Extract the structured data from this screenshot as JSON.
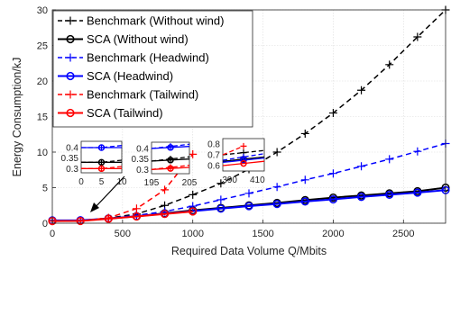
{
  "chart_data": {
    "type": "line",
    "xlabel": "Required Data Volume Q/Mbits",
    "ylabel": "Energy Consumption/kJ",
    "xlim": [
      0,
      2800
    ],
    "ylim": [
      0,
      30
    ],
    "xticks": [
      0,
      500,
      1000,
      1500,
      2000,
      2500
    ],
    "yticks": [
      0,
      5,
      10,
      15,
      20,
      25,
      30
    ],
    "grid": true,
    "legend_position": "top-left",
    "series": [
      {
        "name": "Benchmark (Without wind)",
        "color": "#000000",
        "dash": true,
        "marker": "plus",
        "x": [
          0,
          200,
          400,
          600,
          800,
          1000,
          1200,
          1400,
          1600,
          1800,
          2000,
          2200,
          2400,
          2600,
          2800
        ],
        "y": [
          0.33,
          0.35,
          0.72,
          1.3,
          2.5,
          4.0,
          5.6,
          7.6,
          10.0,
          12.6,
          15.5,
          18.7,
          22.3,
          26.2,
          30.0
        ]
      },
      {
        "name": "SCA (Without wind)",
        "color": "#000000",
        "dash": false,
        "marker": "circle",
        "x": [
          0,
          200,
          400,
          600,
          800,
          1000,
          1200,
          1400,
          1600,
          1800,
          2000,
          2200,
          2400,
          2600,
          2800
        ],
        "y": [
          0.33,
          0.35,
          0.66,
          0.97,
          1.4,
          1.8,
          2.15,
          2.5,
          2.85,
          3.25,
          3.6,
          3.9,
          4.2,
          4.5,
          5.0
        ]
      },
      {
        "name": "Benchmark (Headwind)",
        "color": "#0000ff",
        "dash": true,
        "marker": "plus",
        "x": [
          0,
          200,
          400,
          600,
          800,
          1000,
          1200,
          1400,
          1600,
          1800,
          2000,
          2200,
          2400,
          2600,
          2800
        ],
        "y": [
          0.4,
          0.4,
          0.68,
          1.1,
          1.65,
          2.4,
          3.3,
          4.2,
          5.1,
          6.1,
          7.0,
          8.0,
          9.0,
          10.1,
          11.2
        ]
      },
      {
        "name": "SCA (Headwind)",
        "color": "#0000ff",
        "dash": false,
        "marker": "circle",
        "x": [
          0,
          200,
          400,
          600,
          800,
          1000,
          1200,
          1400,
          1600,
          1800,
          2000,
          2200,
          2400,
          2600,
          2800
        ],
        "y": [
          0.4,
          0.41,
          0.65,
          0.98,
          1.35,
          1.7,
          2.05,
          2.4,
          2.7,
          3.05,
          3.35,
          3.7,
          4.0,
          4.3,
          4.65
        ]
      },
      {
        "name": "Benchmark (Tailwind)",
        "color": "#ff0000",
        "dash": true,
        "marker": "plus",
        "x": [
          0,
          200,
          400,
          600,
          800,
          1000
        ],
        "y": [
          0.3,
          0.32,
          0.75,
          2.05,
          4.7,
          9.7
        ]
      },
      {
        "name": "SCA (Tailwind)",
        "color": "#ff0000",
        "dash": false,
        "marker": "circle",
        "x": [
          0,
          200,
          400,
          600,
          800,
          1000
        ],
        "y": [
          0.3,
          0.31,
          0.62,
          0.95,
          1.3,
          1.65
        ]
      }
    ],
    "insets": [
      {
        "xlim": [
          0,
          10
        ],
        "ylim": [
          0.28,
          0.43
        ],
        "xticks": [
          0,
          5,
          10
        ],
        "yticks": [
          0.3,
          0.35,
          0.4
        ],
        "series_y": [
          [
            0.33,
            0.33,
            0.34
          ],
          [
            0.33,
            0.33,
            0.33
          ],
          [
            0.4,
            0.4,
            0.41
          ],
          [
            0.4,
            0.4,
            0.4
          ],
          [
            0.3,
            0.3,
            0.31
          ],
          [
            0.3,
            0.3,
            0.3
          ]
        ]
      },
      {
        "xlim": [
          195,
          205
        ],
        "ylim": [
          0.28,
          0.43
        ],
        "xticks": [
          195,
          205
        ],
        "yticks": [
          0.3,
          0.35,
          0.4
        ],
        "series_y": [
          [
            0.34,
            0.35,
            0.36
          ],
          [
            0.34,
            0.345,
            0.35
          ],
          [
            0.4,
            0.41,
            0.42
          ],
          [
            0.4,
            0.405,
            0.41
          ],
          [
            0.3,
            0.31,
            0.32
          ],
          [
            0.3,
            0.305,
            0.31
          ]
        ]
      },
      {
        "xlim": [
          385,
          415
        ],
        "ylim": [
          0.55,
          0.85
        ],
        "xticks": [
          390,
          410
        ],
        "yticks": [
          0.6,
          0.7,
          0.8
        ],
        "series_y": [
          [
            0.7,
            0.72,
            0.74
          ],
          [
            0.64,
            0.66,
            0.68
          ],
          [
            0.65,
            0.68,
            0.71
          ],
          [
            0.63,
            0.65,
            0.67
          ],
          [
            0.7,
            0.78,
            0.86
          ],
          [
            0.6,
            0.62,
            0.64
          ]
        ]
      }
    ]
  }
}
